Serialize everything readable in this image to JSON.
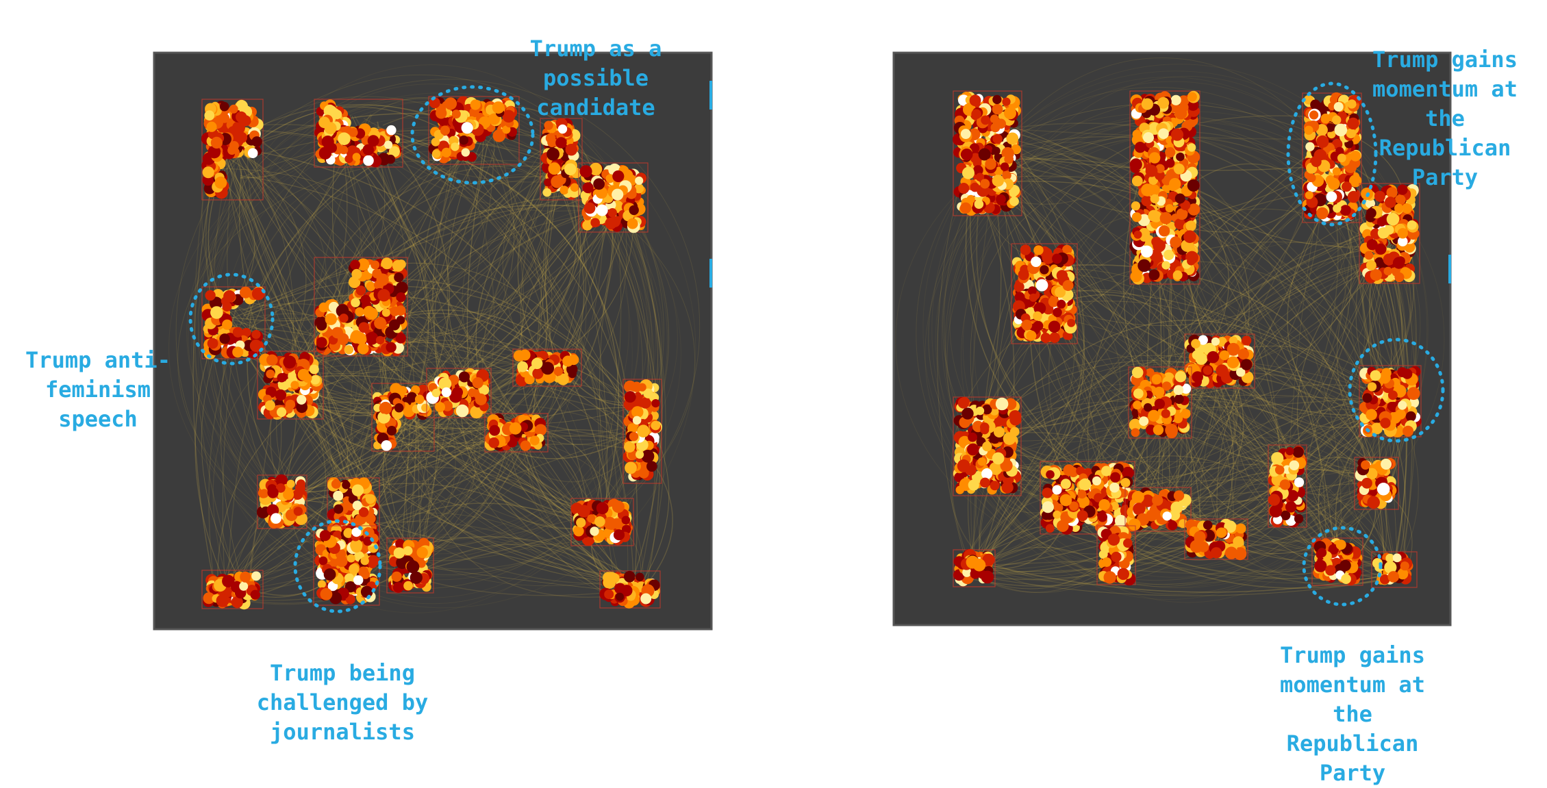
{
  "annotation_color": "#29abe2",
  "panel_background": "#3c3c3c",
  "edge_color": "#d8b64a",
  "node_colors": [
    "#6b0000",
    "#a80000",
    "#d22300",
    "#f05a00",
    "#ff8c00",
    "#ffb41e",
    "#ffd84a",
    "#fff1a8",
    "#ffffff"
  ],
  "panels": [
    {
      "name": "left",
      "annotations": [
        "Trump as a\npossible\ncandidate",
        "Trump anti-\nfeminism\nspeech",
        "Trump being\nchallenged by\njournalists"
      ]
    },
    {
      "name": "right",
      "annotations": [
        "Trump gains\nmomentum at\nthe\nRepublican\nParty",
        "Trump gains\nmomentum at\nthe\nRepublican\nParty"
      ]
    }
  ]
}
